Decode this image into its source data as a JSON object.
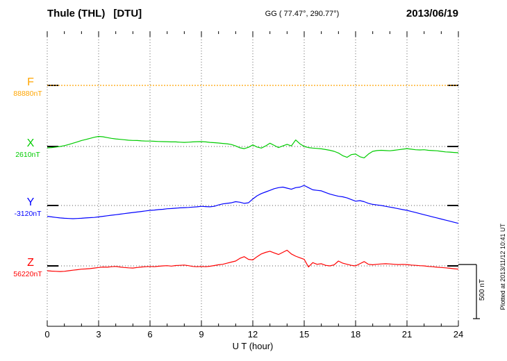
{
  "chart_data": {
    "type": "line",
    "title": "Thule (THL) [DTU] magnetogram",
    "station": "Thule (THL)",
    "institute": "[DTU]",
    "coords_label": "GG ( 77.47°, 290.77°)",
    "date": "2013/06/19",
    "xlabel": "U T (hour)",
    "x_range": [
      0,
      24
    ],
    "x_ticks": [
      0,
      3,
      6,
      9,
      12,
      15,
      18,
      21,
      24
    ],
    "units": "nT",
    "sample_interval_hours": 0.25,
    "scale_bar": {
      "label": "500 nT",
      "span_nT": 500
    },
    "plotted_at": "Plotted at 2013/11/12 10:41 UT",
    "series": [
      {
        "name": "F",
        "color": "#FFA500",
        "style": "dotted",
        "baseline_label": "88880nT",
        "baseline_value_nT": 88880,
        "offsets_nT": [
          0,
          0
        ]
      },
      {
        "name": "X",
        "color": "#00CC00",
        "style": "solid",
        "baseline_label": "2610nT",
        "baseline_value_nT": 2610,
        "offsets_nT": [
          -13,
          -10,
          -6,
          0,
          8,
          18,
          30,
          42,
          55,
          65,
          75,
          85,
          93,
          90,
          82,
          75,
          70,
          66,
          62,
          58,
          56,
          55,
          52,
          50,
          50,
          48,
          46,
          45,
          44,
          42,
          42,
          40,
          38,
          40,
          42,
          44,
          45,
          42,
          38,
          35,
          32,
          28,
          25,
          18,
          5,
          -12,
          -20,
          -8,
          15,
          -5,
          -15,
          5,
          30,
          10,
          -10,
          5,
          20,
          5,
          60,
          25,
          0,
          -10,
          -15,
          -18,
          -22,
          -28,
          -35,
          -45,
          -60,
          -85,
          -100,
          -75,
          -70,
          -95,
          -105,
          -70,
          -45,
          -38,
          -35,
          -38,
          -40,
          -35,
          -30,
          -25,
          -20,
          -25,
          -30,
          -32,
          -30,
          -35,
          -38,
          -40,
          -45,
          -50,
          -52,
          -55,
          -58
        ]
      },
      {
        "name": "Y",
        "color": "#0000FF",
        "style": "solid",
        "baseline_label": "-3120nT",
        "baseline_value_nT": -3120,
        "offsets_nT": [
          -100,
          -105,
          -110,
          -115,
          -118,
          -120,
          -122,
          -120,
          -118,
          -115,
          -112,
          -110,
          -105,
          -100,
          -95,
          -90,
          -85,
          -80,
          -75,
          -70,
          -65,
          -60,
          -55,
          -50,
          -45,
          -42,
          -38,
          -35,
          -30,
          -28,
          -25,
          -22,
          -20,
          -18,
          -15,
          -12,
          -8,
          -10,
          -12,
          -8,
          5,
          15,
          20,
          25,
          35,
          30,
          20,
          25,
          60,
          90,
          110,
          125,
          140,
          155,
          165,
          170,
          160,
          150,
          165,
          170,
          185,
          165,
          145,
          140,
          135,
          120,
          105,
          95,
          85,
          80,
          70,
          55,
          40,
          45,
          35,
          20,
          10,
          5,
          0,
          -8,
          -15,
          -22,
          -30,
          -38,
          -45,
          -55,
          -65,
          -75,
          -85,
          -95,
          -105,
          -115,
          -125,
          -135,
          -145,
          -155,
          -165
        ]
      },
      {
        "name": "Z",
        "color": "#FF0000",
        "style": "solid",
        "baseline_label": "56220nT",
        "baseline_value_nT": 56220,
        "offsets_nT": [
          -45,
          -48,
          -50,
          -52,
          -50,
          -45,
          -40,
          -35,
          -30,
          -28,
          -25,
          -20,
          -15,
          -10,
          -12,
          -8,
          -5,
          -10,
          -15,
          -18,
          -20,
          -15,
          -10,
          -8,
          -5,
          -8,
          -3,
          0,
          2,
          -2,
          3,
          5,
          8,
          2,
          -5,
          -8,
          -5,
          -8,
          -3,
          3,
          10,
          15,
          25,
          35,
          45,
          70,
          85,
          60,
          55,
          85,
          110,
          125,
          135,
          120,
          105,
          125,
          145,
          110,
          90,
          75,
          60,
          -10,
          30,
          15,
          20,
          5,
          0,
          10,
          45,
          25,
          15,
          5,
          0,
          20,
          40,
          15,
          10,
          15,
          18,
          20,
          18,
          15,
          12,
          14,
          12,
          8,
          5,
          2,
          0,
          -5,
          -8,
          -12,
          -15,
          -18,
          -22,
          -26,
          -30
        ]
      }
    ]
  }
}
